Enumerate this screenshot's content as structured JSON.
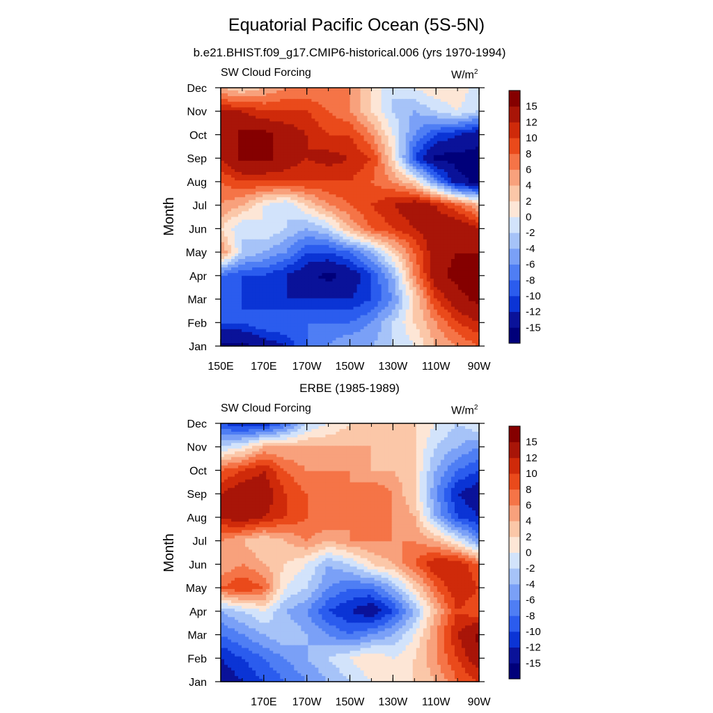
{
  "title": "Equatorial Pacific Ocean (5S-5N)",
  "chart_data": [
    {
      "type": "heatmap",
      "title": "b.e21.BHIST.f09_g17.CMIP6-historical.006 (yrs 1970-1994)",
      "left_label": "SW Cloud Forcing",
      "units_base": "W/m",
      "units_exp": "2",
      "ylabel": "Month",
      "xlabel": "",
      "x_ticks": [
        "150E",
        "170E",
        "170W",
        "150W",
        "130W",
        "110W",
        "90W"
      ],
      "y_ticks": [
        "Jan",
        "Feb",
        "Mar",
        "Apr",
        "May",
        "Jun",
        "Jul",
        "Aug",
        "Sep",
        "Oct",
        "Nov",
        "Dec"
      ],
      "x_range": [
        150,
        270
      ],
      "colorbar_levels": [
        "15",
        "12",
        "10",
        "8",
        "6",
        "4",
        "2",
        "0",
        "-2",
        "-4",
        "-6",
        "-8",
        "-10",
        "-12",
        "-15"
      ],
      "lons": [
        150,
        160,
        170,
        180,
        190,
        200,
        210,
        220,
        230,
        240,
        250,
        260,
        270
      ],
      "values": [
        [
          -16,
          -16,
          -14,
          -12,
          -8,
          -6,
          -4,
          -4,
          -2,
          0,
          4,
          6,
          8
        ],
        [
          -10,
          -10,
          -8,
          -8,
          -8,
          -8,
          -8,
          -6,
          -2,
          2,
          6,
          10,
          12
        ],
        [
          -9,
          -10,
          -12,
          -12,
          -12,
          -12,
          -12,
          -10,
          -6,
          2,
          10,
          14,
          16
        ],
        [
          -8,
          -10,
          -10,
          -12,
          -14,
          -16,
          -14,
          -10,
          -4,
          6,
          14,
          16,
          16
        ],
        [
          6,
          -2,
          -4,
          -6,
          -10,
          -10,
          -8,
          -4,
          2,
          8,
          14,
          15,
          15
        ],
        [
          2,
          -2,
          0,
          -2,
          -4,
          -2,
          4,
          8,
          10,
          12,
          14,
          15,
          12
        ],
        [
          6,
          4,
          0,
          -2,
          2,
          6,
          8,
          10,
          12,
          14,
          12,
          8,
          4
        ],
        [
          8,
          10,
          10,
          10,
          10,
          10,
          10,
          8,
          6,
          2,
          -6,
          -14,
          -16
        ],
        [
          12,
          16,
          16,
          14,
          12,
          13,
          12,
          10,
          2,
          -10,
          -16,
          -16,
          -16
        ],
        [
          12,
          16,
          16,
          14,
          12,
          10,
          10,
          6,
          0,
          -6,
          -10,
          -12,
          -14
        ],
        [
          12,
          12,
          10,
          10,
          10,
          8,
          6,
          2,
          -2,
          -4,
          -2,
          0,
          -2
        ],
        [
          4,
          2,
          4,
          6,
          6,
          6,
          6,
          2,
          -2,
          0,
          2,
          2,
          -2
        ]
      ]
    },
    {
      "type": "heatmap",
      "title": "ERBE (1985-1989)",
      "left_label": "SW Cloud Forcing",
      "units_base": "W/m",
      "units_exp": "2",
      "ylabel": "Month",
      "xlabel": "",
      "x_ticks": [
        "170E",
        "170W",
        "150W",
        "130W",
        "110W",
        "90W"
      ],
      "y_ticks": [
        "Jan",
        "Feb",
        "Mar",
        "Apr",
        "May",
        "Jun",
        "Jul",
        "Aug",
        "Sep",
        "Oct",
        "Nov",
        "Dec"
      ],
      "x_range": [
        150,
        270
      ],
      "colorbar_levels": [
        "15",
        "12",
        "10",
        "8",
        "6",
        "4",
        "2",
        "0",
        "-2",
        "-4",
        "-6",
        "-8",
        "-10",
        "-12",
        "-15"
      ],
      "lons": [
        150,
        160,
        170,
        180,
        190,
        200,
        210,
        220,
        230,
        240,
        250,
        260,
        270
      ],
      "values": [
        [
          -14,
          -12,
          -10,
          -8,
          -6,
          -4,
          -2,
          0,
          2,
          2,
          4,
          8,
          10
        ],
        [
          -12,
          -10,
          -8,
          -6,
          -4,
          -2,
          0,
          2,
          0,
          2,
          6,
          10,
          14
        ],
        [
          -8,
          -6,
          -4,
          -2,
          -4,
          -6,
          -8,
          -6,
          -4,
          0,
          6,
          12,
          16
        ],
        [
          -4,
          -2,
          0,
          -4,
          -6,
          -10,
          -12,
          -14,
          -10,
          -4,
          4,
          10,
          8
        ],
        [
          8,
          10,
          8,
          0,
          -2,
          -6,
          -8,
          -8,
          -4,
          2,
          8,
          12,
          10
        ],
        [
          4,
          6,
          4,
          2,
          0,
          -4,
          -2,
          2,
          4,
          8,
          12,
          12,
          8
        ],
        [
          6,
          4,
          2,
          4,
          6,
          4,
          6,
          6,
          6,
          6,
          4,
          0,
          -6
        ],
        [
          12,
          14,
          12,
          10,
          8,
          8,
          6,
          8,
          6,
          4,
          -4,
          -10,
          -12
        ],
        [
          12,
          14,
          14,
          10,
          8,
          6,
          6,
          8,
          6,
          2,
          -6,
          -12,
          -14
        ],
        [
          8,
          10,
          12,
          8,
          6,
          6,
          6,
          4,
          4,
          2,
          -4,
          -8,
          -10
        ],
        [
          -2,
          0,
          4,
          4,
          4,
          4,
          4,
          4,
          2,
          2,
          -2,
          -4,
          -6
        ],
        [
          -10,
          -12,
          -12,
          -8,
          -2,
          0,
          2,
          2,
          2,
          2,
          0,
          -2,
          0
        ]
      ]
    }
  ],
  "colors": {
    "palette": [
      "#00007a",
      "#0a1299",
      "#0b34d5",
      "#2b5cee",
      "#4f7ef4",
      "#7aa0f7",
      "#a6c3f8",
      "#d2e3fb",
      "#fde6d6",
      "#fbc7a8",
      "#f8a17c",
      "#f57447",
      "#ea4a1b",
      "#cf2a0a",
      "#a81508",
      "#850000"
    ],
    "axis": "#000000"
  }
}
